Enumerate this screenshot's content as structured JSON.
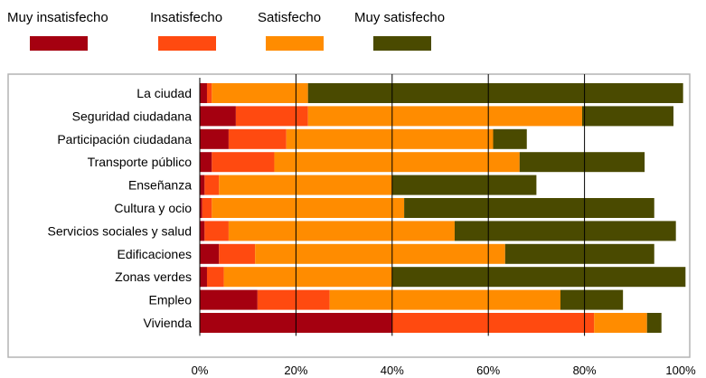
{
  "chart_data": {
    "type": "bar",
    "orientation": "horizontal",
    "stacked": true,
    "percent_axis": true,
    "categories": [
      "La ciudad",
      "Seguridad ciudadana",
      "Participación ciudadana",
      "Transporte público",
      "Enseñanza",
      "Cultura y ocio",
      "Servicios sociales y salud",
      "Edificaciones",
      "Zonas verdes",
      "Empleo",
      "Vivienda"
    ],
    "series": [
      {
        "name": "Muy insatisfecho",
        "color": "#a50010",
        "values": [
          1.5,
          7.5,
          6,
          2.5,
          1,
          0.5,
          1,
          4,
          1.5,
          12,
          40
        ]
      },
      {
        "name": "Insatisfecho",
        "color": "#ff4a10",
        "values": [
          1,
          15,
          12,
          13,
          3,
          2,
          5,
          7.5,
          3.5,
          15,
          42
        ]
      },
      {
        "name": "Satisfecho",
        "color": "#ff8c00",
        "values": [
          20,
          57,
          43,
          51,
          36,
          40,
          47,
          52,
          35,
          48,
          11
        ]
      },
      {
        "name": "Muy satisfecho",
        "color": "#4a4a00",
        "values": [
          78,
          19,
          7,
          26,
          30,
          52,
          46,
          31,
          61,
          13,
          3
        ]
      }
    ],
    "xlim": [
      0,
      100
    ],
    "xticks": [
      "0%",
      "20%",
      "40%",
      "60%",
      "80%",
      "100%"
    ],
    "tick_positions": [
      0,
      20,
      40,
      60,
      80,
      100
    ],
    "grid": true,
    "legend": "top"
  }
}
